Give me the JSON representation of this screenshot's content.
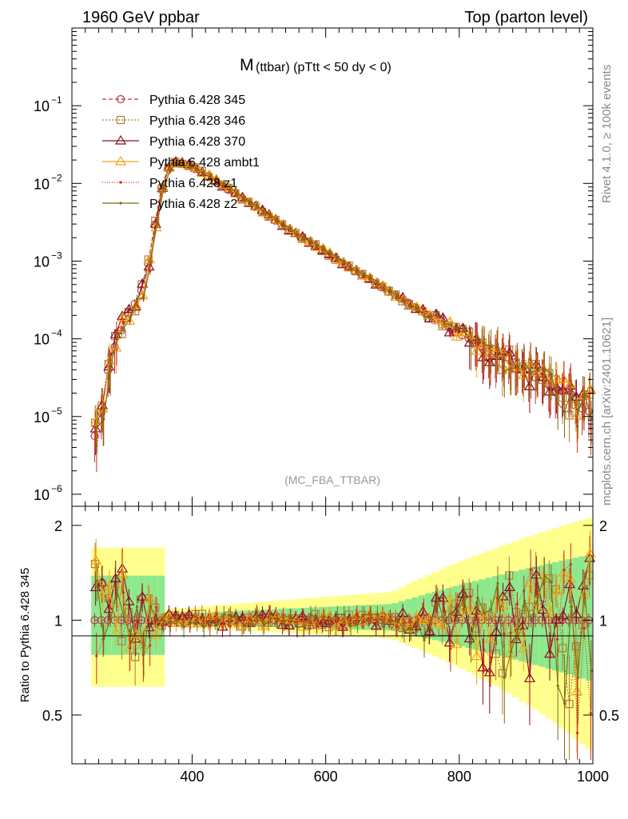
{
  "header": {
    "energy": "1960 GeV ppbar",
    "process": "Top (parton level)"
  },
  "side_labels": {
    "rivet": "Rivet 4.1.0, ≥ 100k events",
    "source": "mcplots.cern.ch [arXiv:2401.10621]"
  },
  "chart_data": {
    "type": "line",
    "title_main": "M",
    "title_sub": "(ttbar) (pTtt < 50 dy < 0)",
    "watermark": "(MC_FBA_TTBAR)",
    "ylabel_ratio": "Ratio to Pythia 6.428 345",
    "xlim": [
      220,
      1000
    ],
    "ylim": [
      7e-07,
      1
    ],
    "ratio_ylim": [
      0.35,
      2.3
    ],
    "x_ticks": [
      "400",
      "600",
      "800",
      "1000"
    ],
    "x_tick_values": [
      400,
      600,
      800,
      1000
    ],
    "y_ticks": [
      {
        "base": "10",
        "exp": "−1",
        "value": 0.1
      },
      {
        "base": "10",
        "exp": "−2",
        "value": 0.01
      },
      {
        "base": "10",
        "exp": "−3",
        "value": 0.001
      },
      {
        "base": "10",
        "exp": "−4",
        "value": 0.0001
      },
      {
        "base": "10",
        "exp": "−5",
        "value": 1e-05
      },
      {
        "base": "10",
        "exp": "−6",
        "value": 1e-06
      }
    ],
    "ratio_ticks": [
      "0.5",
      "1",
      "2"
    ],
    "ratio_tick_values": [
      0.5,
      1,
      2
    ],
    "shape": {
      "x": [
        260,
        270,
        280,
        290,
        300,
        310,
        320,
        330,
        340,
        350,
        360,
        370,
        380,
        390,
        400,
        420,
        440,
        460,
        480,
        500,
        520,
        540,
        560,
        580,
        600,
        620,
        640,
        660,
        680,
        700,
        720,
        740,
        760,
        780,
        800,
        820,
        840,
        860,
        880,
        900,
        920,
        940,
        960,
        980,
        1000
      ],
      "y": [
        5.5e-06,
        2.8e-05,
        7e-05,
        0.00011,
        0.00018,
        0.00026,
        0.00036,
        0.00056,
        0.0018,
        0.0065,
        0.014,
        0.018,
        0.0185,
        0.0175,
        0.016,
        0.013,
        0.01,
        0.0078,
        0.006,
        0.0046,
        0.0035,
        0.0027,
        0.0021,
        0.00165,
        0.0013,
        0.001,
        0.00078,
        0.00061,
        0.00048,
        0.00038,
        0.0003,
        0.000235,
        0.000185,
        0.000148,
        0.000118,
        9.5e-05,
        7.6e-05,
        6.1e-05,
        4.9e-05,
        3.9e-05,
        3.1e-05,
        2.5e-05,
        2e-05,
        1.6e-05,
        1.3e-05
      ]
    },
    "series": [
      {
        "name": "Pythia 6.428 345",
        "color": "#c0304a",
        "marker": "circle",
        "dash": "5,3",
        "seed": 11
      },
      {
        "name": "Pythia 6.428 346",
        "color": "#b07c3a",
        "marker": "square",
        "dash": "2,2",
        "seed": 23
      },
      {
        "name": "Pythia 6.428 370",
        "color": "#8b0a1e",
        "marker": "triangle",
        "dash": "",
        "seed": 37
      },
      {
        "name": "Pythia 6.428 ambt1",
        "color": "#f4a412",
        "marker": "triangle",
        "dash": "",
        "seed": 41
      },
      {
        "name": "Pythia 6.428 z1",
        "color": "#d12b1c",
        "marker": "dot",
        "dash": "1,2",
        "seed": 53
      },
      {
        "name": "Pythia 6.428 z2",
        "color": "#7a6d16",
        "marker": "dot",
        "dash": "",
        "seed": 67
      }
    ],
    "bands": {
      "yellow": "#ffff8c",
      "green": "#8ce88c"
    }
  }
}
